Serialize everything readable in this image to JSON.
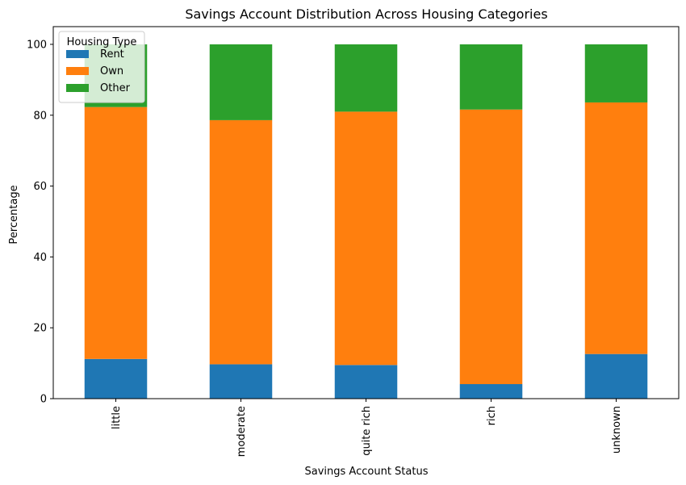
{
  "chart_data": {
    "type": "bar",
    "stacked": true,
    "title": "Savings Account Distribution Across Housing Categories",
    "xlabel": "Savings Account Status",
    "ylabel": "Percentage",
    "ylim": [
      0,
      105
    ],
    "yticks": [
      0,
      20,
      40,
      60,
      80,
      100
    ],
    "categories": [
      "little",
      "moderate",
      "quite rich",
      "rich",
      "unknown"
    ],
    "series": [
      {
        "name": "Rent",
        "color": "#1f77b4",
        "values": [
          11.2,
          9.7,
          9.5,
          4.1,
          12.6
        ]
      },
      {
        "name": "Own",
        "color": "#ff7f0e",
        "values": [
          71.1,
          68.9,
          71.5,
          77.5,
          71.0
        ]
      },
      {
        "name": "Other",
        "color": "#2ca02c",
        "values": [
          17.7,
          21.4,
          19.0,
          18.4,
          16.4
        ]
      }
    ],
    "legend": {
      "title": "Housing Type",
      "placement": "top-left"
    },
    "grid": false
  }
}
